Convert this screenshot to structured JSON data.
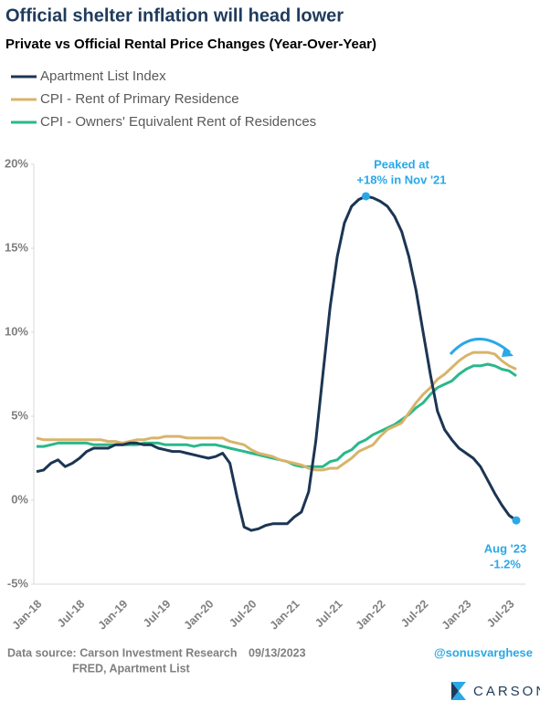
{
  "chart_data": {
    "type": "line",
    "title": "Official shelter inflation will head lower",
    "subtitle": "Private vs Official Rental Price Changes (Year-Over-Year)",
    "categories": [
      "Jan-18",
      null,
      null,
      null,
      null,
      null,
      "Jul-18",
      null,
      null,
      null,
      null,
      null,
      "Jan-19",
      null,
      null,
      null,
      null,
      null,
      "Jul-19",
      null,
      null,
      null,
      null,
      null,
      "Jan-20",
      null,
      null,
      null,
      null,
      null,
      "Jul-20",
      null,
      null,
      null,
      null,
      null,
      "Jan-21",
      null,
      null,
      null,
      null,
      null,
      "Jul-21",
      null,
      null,
      null,
      null,
      null,
      "Jan-22",
      null,
      null,
      null,
      null,
      null,
      "Jul-22",
      null,
      null,
      null,
      null,
      null,
      "Jan-23",
      null,
      null,
      null,
      null,
      null,
      "Jul-23",
      null
    ],
    "series": [
      {
        "name": "Apartment List Index",
        "color": "#1c3553",
        "values": [
          1.7,
          1.8,
          2.2,
          2.4,
          2.0,
          2.2,
          2.5,
          2.9,
          3.1,
          3.1,
          3.1,
          3.3,
          3.3,
          3.4,
          3.4,
          3.3,
          3.3,
          3.1,
          3.0,
          2.9,
          2.9,
          2.8,
          2.7,
          2.6,
          2.5,
          2.6,
          2.8,
          2.2,
          0.2,
          -1.6,
          -1.8,
          -1.7,
          -1.5,
          -1.4,
          -1.4,
          -1.4,
          -1.0,
          -0.7,
          0.5,
          3.5,
          7.5,
          11.5,
          14.5,
          16.5,
          17.5,
          17.9,
          18.1,
          18.0,
          17.8,
          17.5,
          16.9,
          16.0,
          14.5,
          12.5,
          10.0,
          7.5,
          5.3,
          4.2,
          3.6,
          3.1,
          2.8,
          2.5,
          2.0,
          1.2,
          0.4,
          -0.3,
          -0.9,
          -1.2
        ]
      },
      {
        "name": "CPI - Rent of Primary Residence",
        "color": "#d8b46a",
        "values": [
          3.7,
          3.6,
          3.6,
          3.6,
          3.6,
          3.6,
          3.6,
          3.6,
          3.6,
          3.6,
          3.5,
          3.5,
          3.4,
          3.5,
          3.6,
          3.6,
          3.7,
          3.7,
          3.8,
          3.8,
          3.8,
          3.7,
          3.7,
          3.7,
          3.7,
          3.7,
          3.7,
          3.5,
          3.4,
          3.3,
          3.0,
          2.8,
          2.7,
          2.6,
          2.4,
          2.3,
          2.2,
          2.1,
          1.9,
          1.8,
          1.8,
          1.9,
          1.9,
          2.2,
          2.5,
          2.9,
          3.1,
          3.3,
          3.8,
          4.2,
          4.4,
          4.6,
          5.2,
          5.8,
          6.3,
          6.7,
          7.2,
          7.5,
          7.9,
          8.3,
          8.6,
          8.8,
          8.8,
          8.8,
          8.7,
          8.3,
          8.0,
          7.8
        ]
      },
      {
        "name": "CPI - Owners' Equivalent Rent of Residences",
        "color": "#2ab88a",
        "values": [
          3.2,
          3.2,
          3.3,
          3.4,
          3.4,
          3.4,
          3.4,
          3.4,
          3.3,
          3.3,
          3.3,
          3.3,
          3.3,
          3.3,
          3.3,
          3.4,
          3.4,
          3.4,
          3.3,
          3.3,
          3.3,
          3.3,
          3.2,
          3.3,
          3.3,
          3.3,
          3.2,
          3.1,
          3.0,
          2.9,
          2.8,
          2.7,
          2.6,
          2.5,
          2.4,
          2.3,
          2.1,
          2.0,
          2.0,
          2.0,
          2.0,
          2.3,
          2.4,
          2.8,
          3.0,
          3.4,
          3.6,
          3.9,
          4.1,
          4.3,
          4.5,
          4.8,
          5.1,
          5.5,
          5.8,
          6.3,
          6.7,
          6.9,
          7.1,
          7.5,
          7.8,
          8.0,
          8.0,
          8.1,
          8.0,
          7.8,
          7.7,
          7.4
        ]
      }
    ],
    "ylim": [
      -5,
      20
    ],
    "yticks": [
      {
        "value": -5,
        "label": "-5%"
      },
      {
        "value": 0,
        "label": "0%"
      },
      {
        "value": 5,
        "label": "5%"
      },
      {
        "value": 10,
        "label": "10%"
      },
      {
        "value": 15,
        "label": "15%"
      },
      {
        "value": 20,
        "label": "20%"
      }
    ],
    "annotations": [
      {
        "lines": [
          "Peaked at",
          "+18% in Nov '21"
        ],
        "color": "#2aa8e8"
      },
      {
        "lines": [
          "Aug '23",
          "-1.2%"
        ],
        "color": "#2aa8e8"
      }
    ],
    "source": [
      "Data source: Carson Investment Research",
      "FRED, Apartment List"
    ],
    "date": "09/13/2023",
    "handle": "@sonusvarghese",
    "logo": "CARSON"
  }
}
